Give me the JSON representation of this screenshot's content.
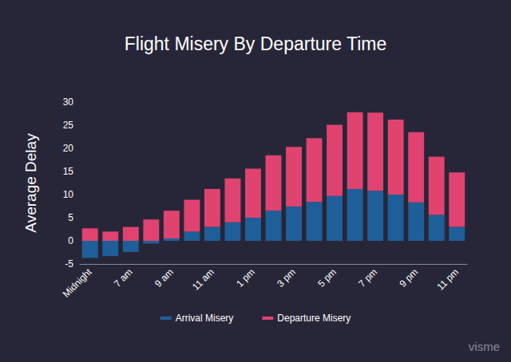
{
  "chart_data": {
    "type": "bar",
    "title": "Flight Misery By Departure Time",
    "y_label": "Average Delay",
    "annotation": "visme",
    "categories": [
      "Midnight",
      null,
      "7 am",
      null,
      "9 am",
      null,
      "11 am",
      null,
      "1 pm",
      null,
      "3 pm",
      null,
      "5 pm",
      null,
      "7 pm",
      null,
      "9 pm",
      null,
      "11 pm"
    ],
    "series": [
      {
        "name": "Arrival Misery",
        "color": "#1f5f99",
        "values": [
          -3.7,
          -3.3,
          -2.4,
          -0.6,
          0.5,
          2.0,
          3.0,
          4.0,
          5.0,
          6.5,
          7.4,
          8.4,
          9.7,
          11.2,
          10.8,
          10.0,
          8.3,
          5.6,
          3.0
        ]
      },
      {
        "name": "Departure Misery",
        "color": "#e0436f",
        "values": [
          2.7,
          2.0,
          3.0,
          4.6,
          6.0,
          6.9,
          8.2,
          9.5,
          10.6,
          12.0,
          12.9,
          13.8,
          15.4,
          16.6,
          16.9,
          16.2,
          15.2,
          12.6,
          11.8
        ]
      }
    ],
    "stacked": true,
    "ylim": [
      -5,
      30
    ],
    "yticks": [
      -5,
      0,
      5,
      10,
      15,
      20,
      25,
      30
    ],
    "grid": false,
    "legend": "bottom"
  }
}
